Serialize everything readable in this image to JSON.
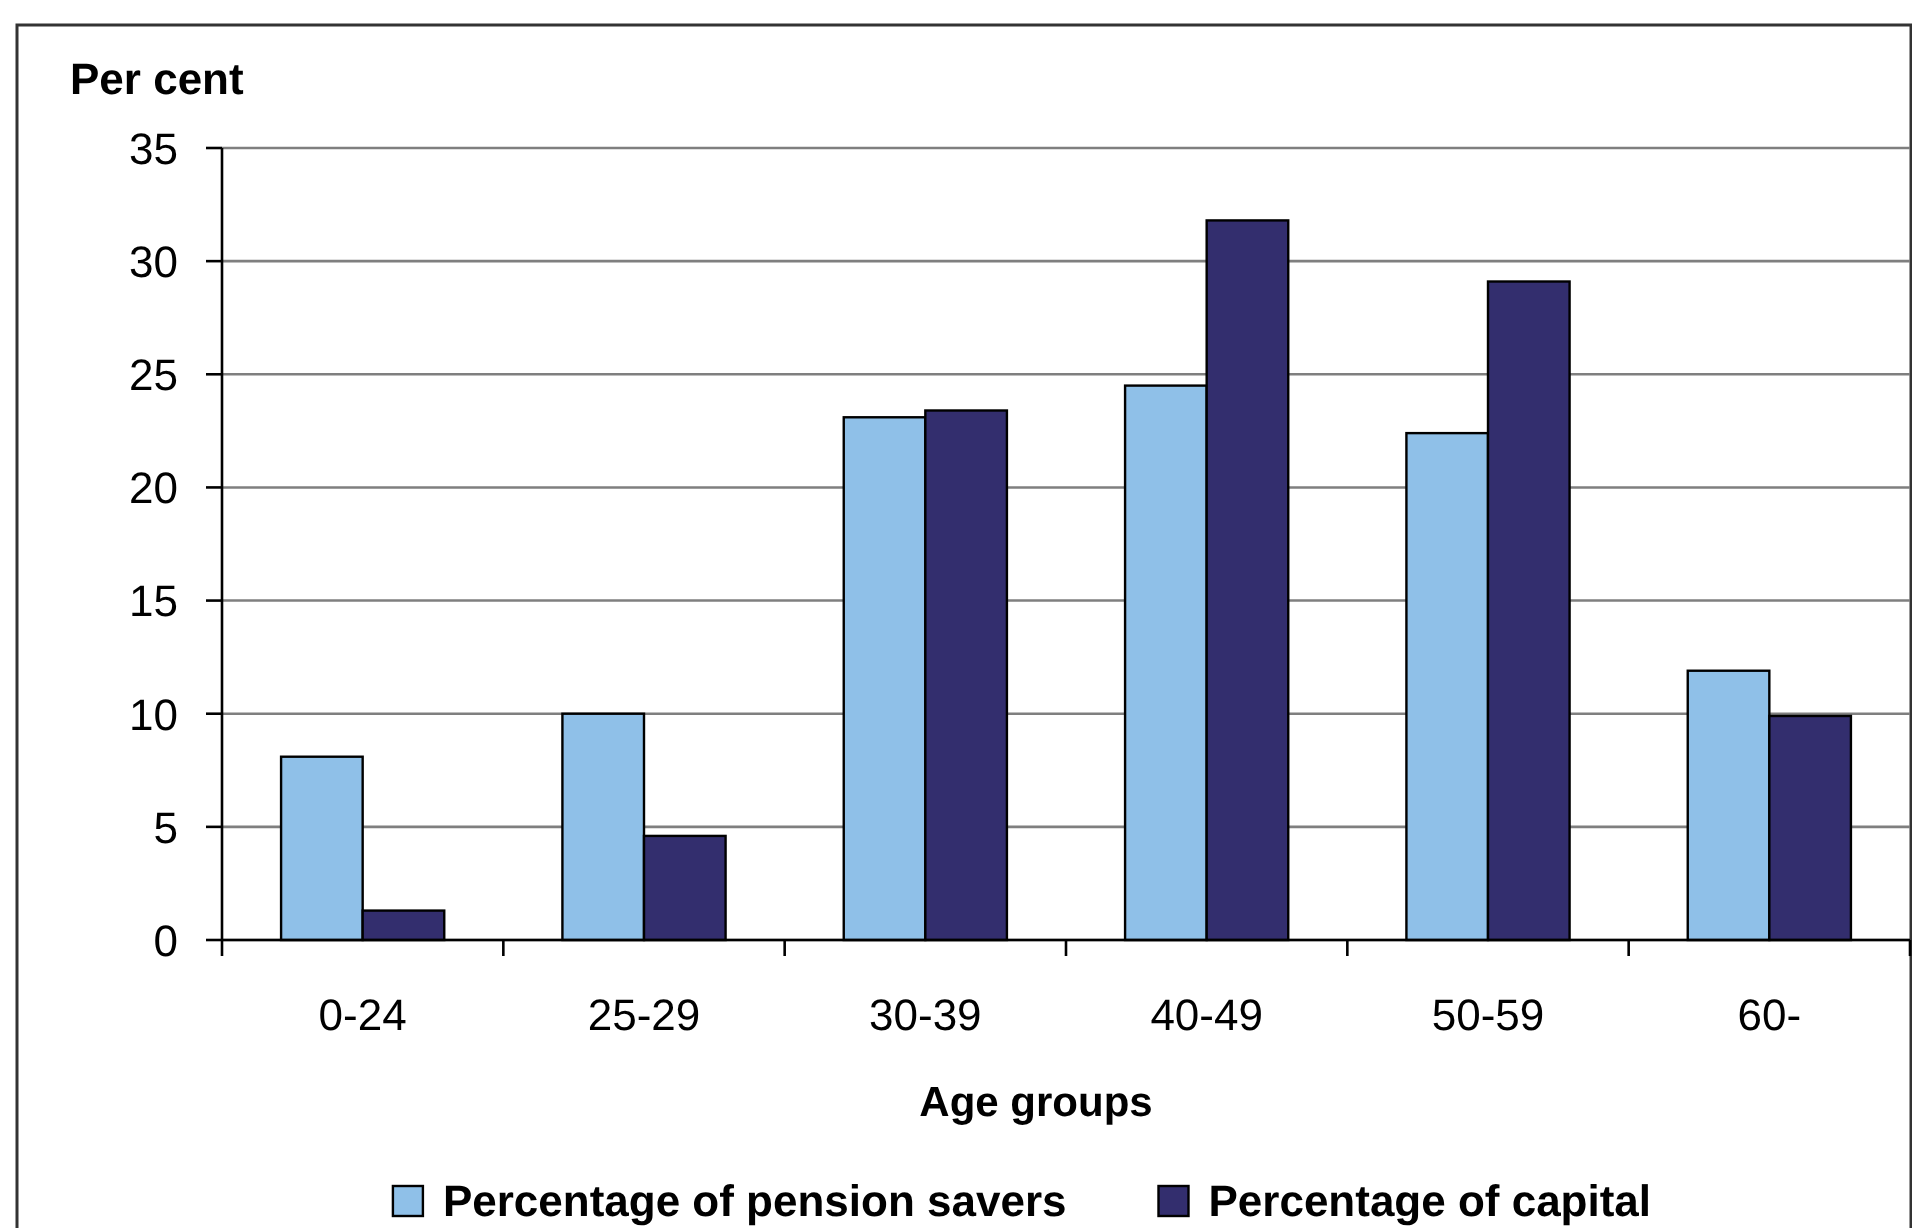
{
  "chart_data": {
    "type": "bar",
    "xlabel": "Age groups",
    "ylabel": "Per cent",
    "categories": [
      "0-24",
      "25-29",
      "30-39",
      "40-49",
      "50-59",
      "60-"
    ],
    "series": [
      {
        "name": "Percentage of pension savers",
        "color": "#8fc0e8",
        "values": [
          8.1,
          10.0,
          23.1,
          24.5,
          22.4,
          11.9
        ]
      },
      {
        "name": "Percentage of capital",
        "color": "#332e6e",
        "values": [
          1.3,
          4.6,
          23.4,
          31.8,
          29.1,
          9.9
        ]
      }
    ],
    "ylim": [
      0,
      35
    ],
    "yticks": [
      0,
      5,
      10,
      15,
      20,
      25,
      30,
      35
    ],
    "grid": "y",
    "legend": "bottom"
  }
}
